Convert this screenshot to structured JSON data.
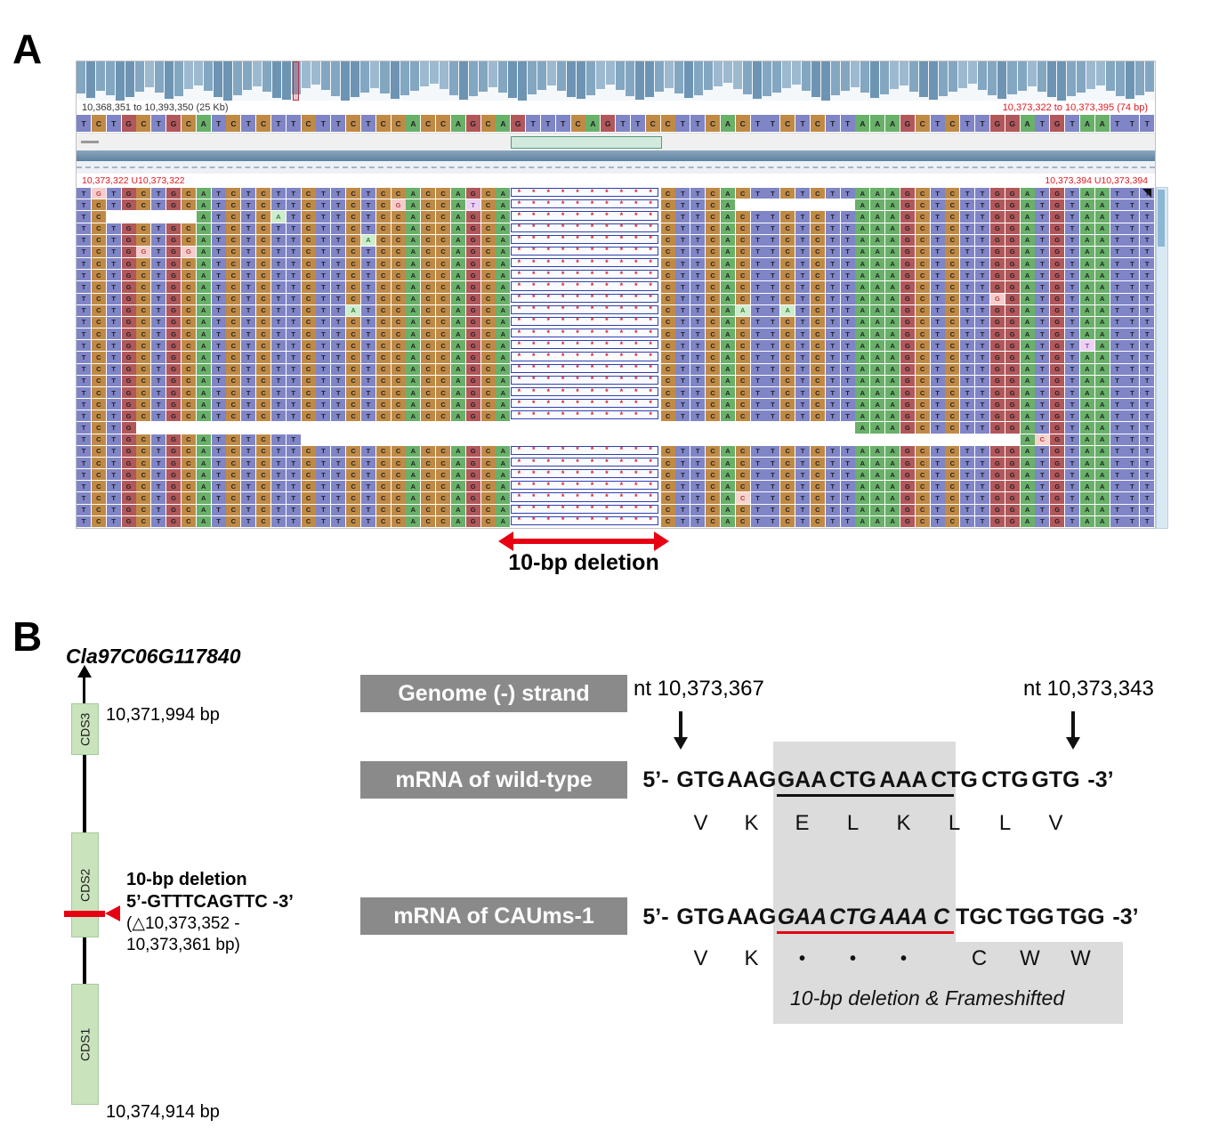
{
  "figure": {
    "panelA_label": "A",
    "panelB_label": "B"
  },
  "panelA": {
    "deletion_arrow_label": "10-bp deletion",
    "viewer": {
      "locus_left": "10,368,351 to 10,393,350 (25 Kb)",
      "locus_right": "10,373,322 to 10,373,395 (74 bp)",
      "coords_left": "10,373,322 U10,373,322",
      "coords_right": "10,373,394 U10,373,394",
      "reference": "TCTGCTGCATCTCTTCTTCTCCACCAGCAGTTTCAGTTCCTTCACTTCTCTTAAAGCTCTTGGATGTAATTT",
      "deletion_start_col": 29,
      "deletion_length": 10,
      "base_colors": {
        "A": "#69b069",
        "C": "#c08a45",
        "G": "#b2575a",
        "T": "#7f85c6"
      },
      "mismatch_styles": {
        "A": {
          "bg": "#cdeccd",
          "fg": "#2e7d32"
        },
        "C": {
          "bg": "#f7d3cd",
          "fg": "#b33c3c"
        },
        "G": {
          "bg": "#f7cccc",
          "fg": "#b34444"
        },
        "T": {
          "bg": "#ecd2f2",
          "fg": "#8e44ad"
        }
      },
      "coverage": [
        36,
        41,
        33,
        38,
        44,
        40,
        34,
        29,
        35,
        42,
        39,
        31,
        27,
        33,
        40,
        44,
        38,
        32,
        28,
        34,
        41,
        43,
        37,
        30,
        26,
        32,
        39,
        44,
        40,
        35,
        30,
        36,
        42,
        38,
        33,
        28,
        25,
        31,
        38,
        43,
        39,
        34,
        29,
        35,
        41,
        44,
        37,
        32,
        27,
        33,
        40,
        42,
        38,
        31,
        26,
        32,
        39,
        43,
        40,
        34,
        30,
        36,
        41,
        38,
        32,
        28,
        24,
        31,
        37,
        42,
        39,
        35,
        30,
        26,
        33,
        40,
        44,
        38,
        33,
        29,
        35,
        41,
        37,
        31,
        27,
        34,
        40,
        43,
        39,
        34,
        30,
        25,
        32,
        38,
        42,
        37,
        33,
        28,
        34,
        40,
        44,
        39,
        35,
        31,
        27,
        33,
        39,
        42,
        38,
        34
      ],
      "reads": [
        {
          "segs": [
            [
              0,
              71
            ]
          ],
          "del": true,
          "mm": [
            [
              1,
              "G"
            ]
          ]
        },
        {
          "segs": [
            [
              0,
              43
            ],
            [
              52,
              71
            ]
          ],
          "del": true,
          "mm": [
            [
              21,
              "G"
            ],
            [
              26,
              "T"
            ]
          ]
        },
        {
          "segs": [
            [
              0,
              1
            ],
            [
              8,
              71
            ]
          ],
          "del": true,
          "mm": [
            [
              13,
              "A"
            ]
          ]
        },
        {
          "segs": [
            [
              0,
              71
            ]
          ],
          "del": true,
          "mm": []
        },
        {
          "segs": [
            [
              0,
              71
            ]
          ],
          "del": true,
          "mm": [
            [
              19,
              "A"
            ]
          ]
        },
        {
          "segs": [
            [
              0,
              71
            ]
          ],
          "del": true,
          "mm": [
            [
              4,
              "G"
            ],
            [
              7,
              "G"
            ]
          ]
        },
        {
          "segs": [
            [
              0,
              71
            ]
          ],
          "del": true,
          "mm": []
        },
        {
          "segs": [
            [
              0,
              71
            ]
          ],
          "del": true,
          "mm": []
        },
        {
          "segs": [
            [
              0,
              71
            ]
          ],
          "del": true,
          "mm": []
        },
        {
          "segs": [
            [
              0,
              71
            ]
          ],
          "del": true,
          "mm": [
            [
              61,
              "G"
            ]
          ]
        },
        {
          "segs": [
            [
              0,
              71
            ]
          ],
          "del": true,
          "mm": [
            [
              18,
              "A"
            ],
            [
              44,
              "A"
            ],
            [
              47,
              "A"
            ]
          ]
        },
        {
          "segs": [
            [
              0,
              71
            ]
          ],
          "del": true,
          "mm": []
        },
        {
          "segs": [
            [
              0,
              71
            ]
          ],
          "del": true,
          "mm": []
        },
        {
          "segs": [
            [
              0,
              71
            ]
          ],
          "del": true,
          "mm": [
            [
              67,
              "T"
            ]
          ]
        },
        {
          "segs": [
            [
              0,
              71
            ]
          ],
          "del": true,
          "mm": []
        },
        {
          "segs": [
            [
              0,
              71
            ]
          ],
          "del": true,
          "mm": []
        },
        {
          "segs": [
            [
              0,
              71
            ]
          ],
          "del": true,
          "mm": []
        },
        {
          "segs": [
            [
              0,
              71
            ]
          ],
          "del": true,
          "mm": []
        },
        {
          "segs": [
            [
              0,
              71
            ]
          ],
          "del": true,
          "mm": []
        },
        {
          "segs": [
            [
              0,
              71
            ]
          ],
          "del": true,
          "mm": []
        },
        {
          "segs": [
            [
              0,
              3
            ],
            [
              52,
              71
            ]
          ],
          "del": false,
          "mm": []
        },
        {
          "segs": [
            [
              0,
              14
            ],
            [
              63,
              71
            ]
          ],
          "del": false,
          "mm": [
            [
              64,
              "C"
            ]
          ]
        },
        {
          "segs": [
            [
              0,
              71
            ]
          ],
          "del": true,
          "mm": []
        },
        {
          "segs": [
            [
              0,
              71
            ]
          ],
          "del": true,
          "mm": []
        },
        {
          "segs": [
            [
              0,
              71
            ]
          ],
          "del": true,
          "mm": []
        },
        {
          "segs": [
            [
              0,
              71
            ]
          ],
          "del": true,
          "mm": []
        },
        {
          "segs": [
            [
              0,
              71
            ]
          ],
          "del": true,
          "mm": [
            [
              44,
              "C"
            ]
          ]
        },
        {
          "segs": [
            [
              0,
              71
            ]
          ],
          "del": true,
          "mm": []
        },
        {
          "segs": [
            [
              0,
              71
            ]
          ],
          "del": true,
          "mm": []
        }
      ]
    }
  },
  "panelB": {
    "gene": {
      "name": "Cla97C06G117840",
      "cds1_label": "CDS1",
      "cds2_label": "CDS2",
      "cds3_label": "CDS3",
      "top_bp": "10,371,994 bp",
      "bottom_bp": "10,374,914 bp",
      "deletion_title": "10-bp deletion",
      "deletion_seq": "5’-GTTTCAGTTC -3’",
      "deletion_range_line1": "(△10,373,352 -",
      "deletion_range_line2": "10,373,361 bp)"
    },
    "tracks": {
      "genome_label": "Genome (-) strand",
      "wt_label": "mRNA of wild-type",
      "mut_label": "mRNA of CAUms-1",
      "nt_left": "nt 10,373,367",
      "nt_right": "nt 10,373,343",
      "prefix": "5’-",
      "suffix": "-3’",
      "wt_codons": [
        "GTG",
        "AAG",
        "GAA",
        "CTG",
        "AAA",
        "CTG",
        "CTG",
        "GTG"
      ],
      "wt_aa": [
        "V",
        "K",
        "E",
        "L",
        "K",
        "L",
        "L",
        "V"
      ],
      "mut_codons_pre": [
        "GTG",
        "AAG"
      ],
      "mut_codons_del": [
        "GAA",
        "CTG",
        "AAA",
        "C"
      ],
      "mut_codons_post": [
        "TGC",
        "TGG",
        "TGG"
      ],
      "mut_aa_pre": [
        "V",
        "K"
      ],
      "mut_dots": [
        "•",
        "•",
        "•"
      ],
      "mut_aa_post": [
        "C",
        "W",
        "W"
      ],
      "note": "10-bp deletion & Frameshifted"
    }
  },
  "colors": {
    "accent_red": "#e60012",
    "cds_green": "#c9e3bd",
    "label_gray": "#8a8a8a",
    "highlight_gray": "#dcdcdc"
  }
}
